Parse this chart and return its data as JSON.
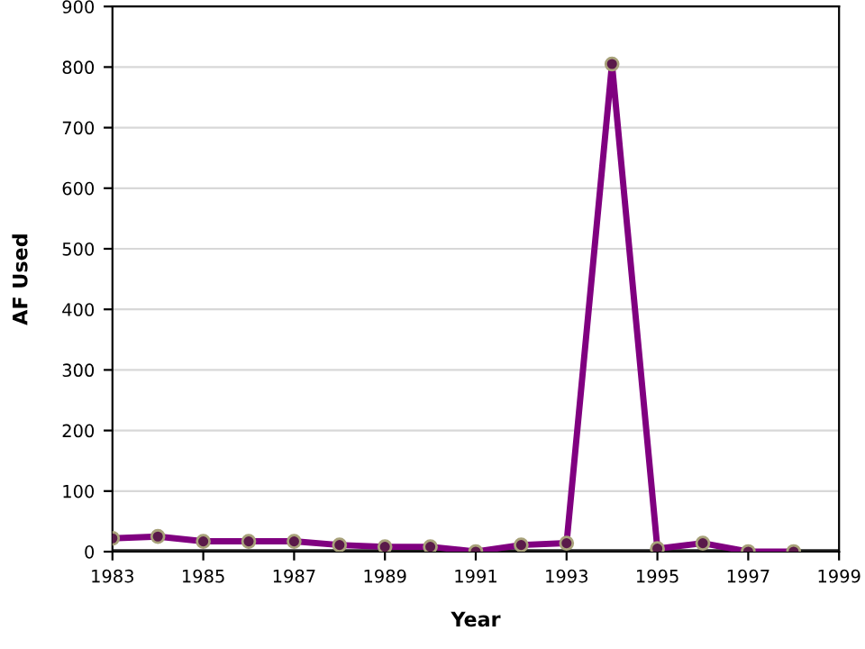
{
  "chart_data": {
    "type": "line",
    "xlabel": "Year",
    "ylabel": "AF Used",
    "x": [
      1983,
      1984,
      1985,
      1986,
      1987,
      1988,
      1989,
      1990,
      1991,
      1992,
      1993,
      1994,
      1995,
      1996,
      1997,
      1998
    ],
    "series": [
      {
        "color": "#800080",
        "values": [
          22,
          25,
          17,
          17,
          17,
          11,
          8,
          8,
          0,
          11,
          14,
          805,
          5,
          14,
          0,
          0
        ]
      }
    ],
    "xlim": [
      1983,
      1999
    ],
    "xticks": [
      1983,
      1985,
      1987,
      1989,
      1991,
      1993,
      1995,
      1997,
      1999
    ],
    "ylim": [
      0,
      900
    ],
    "yticks": [
      0,
      100,
      200,
      300,
      400,
      500,
      600,
      700,
      800,
      900
    ],
    "grid": "y",
    "marker": "circle",
    "line_style": "solid",
    "legend": false
  }
}
